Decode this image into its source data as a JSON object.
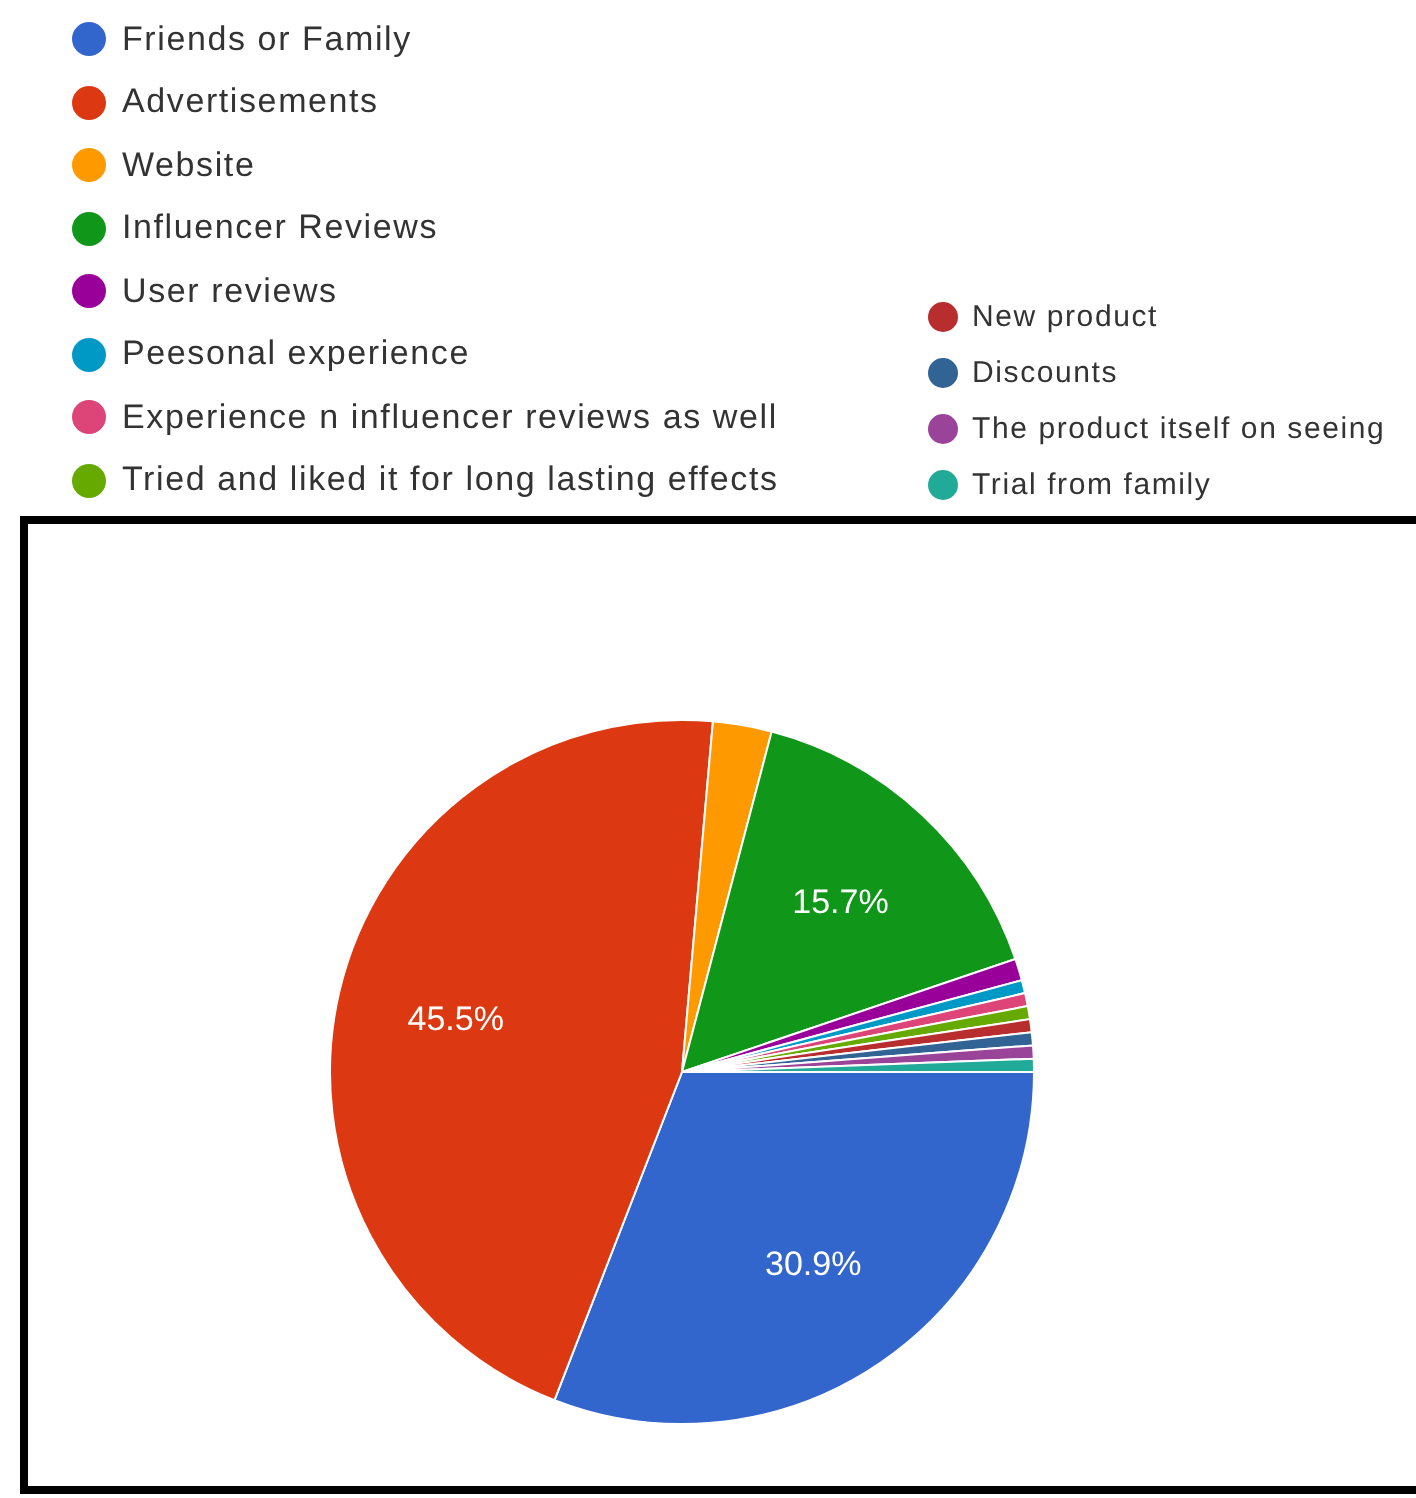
{
  "chart_data": {
    "type": "pie",
    "categories": [
      "Friends or Family",
      "Advertisements",
      "Website",
      "Influencer Reviews",
      "User reviews",
      "Peesonal experience",
      "Experience n influencer reviews as well",
      "Tried and liked it for long lasting effects",
      "New product",
      "Discounts",
      "The product itself on seeing",
      "Trial from family"
    ],
    "values": [
      30.9,
      45.5,
      2.7,
      15.7,
      1.0,
      0.6,
      0.6,
      0.6,
      0.6,
      0.6,
      0.6,
      0.6
    ],
    "colors": [
      "#3366cc",
      "#dc3912",
      "#ff9900",
      "#109618",
      "#990099",
      "#0099c6",
      "#dd4477",
      "#66aa00",
      "#b82e2e",
      "#316395",
      "#994499",
      "#22aa99"
    ],
    "value_labels": [
      "30.9%",
      "45.5%",
      null,
      "15.7%",
      null,
      null,
      null,
      null,
      null,
      null,
      null,
      null
    ],
    "legend": "top"
  }
}
